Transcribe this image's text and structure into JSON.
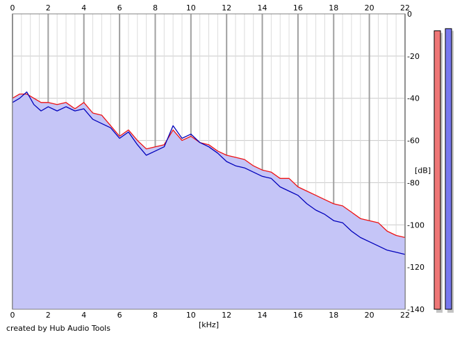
{
  "chart_data": {
    "type": "area",
    "title": "",
    "xlabel": "[kHz]",
    "ylabel": "[dB]",
    "xlim": [
      0,
      22
    ],
    "ylim": [
      -140,
      0
    ],
    "x_ticks": [
      "0",
      "2",
      "4",
      "6",
      "8",
      "10",
      "12",
      "14",
      "16",
      "18",
      "20",
      "22"
    ],
    "y_ticks": [
      "0",
      "-20",
      "-40",
      "-60",
      "-80",
      "-100",
      "-120",
      "-140"
    ],
    "grid": true,
    "series": [
      {
        "color": "#ee1111",
        "x": [
          0,
          0.4,
          0.8,
          1.2,
          1.6,
          2.0,
          2.5,
          3.0,
          3.5,
          4.0,
          4.5,
          5.0,
          5.5,
          6.0,
          6.5,
          7.0,
          7.5,
          8.0,
          8.5,
          9.0,
          9.5,
          10.0,
          10.5,
          11.0,
          11.5,
          12.0,
          12.5,
          13.0,
          13.5,
          14.0,
          14.5,
          15.0,
          15.5,
          16.0,
          16.5,
          17.0,
          17.5,
          18.0,
          18.5,
          19.0,
          19.5,
          20.0,
          20.5,
          21.0,
          21.5,
          22.0
        ],
        "values": [
          -40,
          -38,
          -38,
          -40,
          -42,
          -42,
          -43,
          -42,
          -45,
          -42,
          -47,
          -48,
          -53,
          -58,
          -55,
          -60,
          -64,
          -63,
          -62,
          -55,
          -60,
          -58,
          -61,
          -62,
          -65,
          -67,
          -68,
          -69,
          -72,
          -74,
          -75,
          -78,
          -78,
          -82,
          -84,
          -86,
          -88,
          -90,
          -91,
          -94,
          -97,
          -98,
          -99,
          -103,
          -105,
          -106
        ]
      },
      {
        "color": "#0000bb",
        "x": [
          0,
          0.4,
          0.8,
          1.2,
          1.6,
          2.0,
          2.5,
          3.0,
          3.5,
          4.0,
          4.5,
          5.0,
          5.5,
          6.0,
          6.5,
          7.0,
          7.5,
          8.0,
          8.5,
          9.0,
          9.5,
          10.0,
          10.5,
          11.0,
          11.5,
          12.0,
          12.5,
          13.0,
          13.5,
          14.0,
          14.5,
          15.0,
          15.5,
          16.0,
          16.5,
          17.0,
          17.5,
          18.0,
          18.5,
          19.0,
          19.5,
          20.0,
          20.5,
          21.0,
          21.5,
          22.0
        ],
        "values": [
          -42,
          -40,
          -37,
          -43,
          -46,
          -44,
          -46,
          -44,
          -46,
          -45,
          -50,
          -52,
          -54,
          -59,
          -56,
          -62,
          -67,
          -65,
          -63,
          -53,
          -59,
          -57,
          -61,
          -63,
          -66,
          -70,
          -72,
          -73,
          -75,
          -77,
          -78,
          -82,
          -84,
          -86,
          -90,
          -93,
          -95,
          -98,
          -99,
          -103,
          -106,
          -108,
          -110,
          -112,
          -113,
          -114
        ]
      }
    ],
    "side_meters": [
      {
        "color": "#ee7777",
        "level_db": -8
      },
      {
        "color": "#7777ee",
        "level_db": -7
      }
    ]
  },
  "footer": {
    "credit": "created by Hub Audio Tools"
  }
}
